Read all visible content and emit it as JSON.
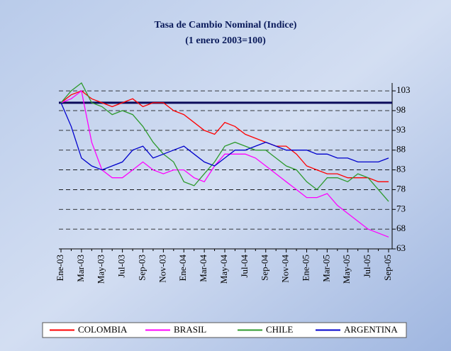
{
  "chart_data": {
    "type": "line",
    "title": "Tasa de Cambio Nominal (Indice)",
    "subtitle": "(1 enero 2003=100)",
    "categories": [
      "Ene-03",
      null,
      "Mar-03",
      null,
      "May-03",
      null,
      "Jul-03",
      null,
      "Sep-03",
      null,
      "Nov-03",
      null,
      "Ene-04",
      null,
      "Mar-04",
      null,
      "May-04",
      null,
      "Jul-04",
      null,
      "Sep-04",
      null,
      "Nov-04",
      null,
      "Ene-05",
      null,
      "Mar-05",
      null,
      "May-05",
      null,
      "Jul-05",
      null,
      "Sep-05"
    ],
    "series": [
      {
        "name": "COLOMBIA",
        "color": "#ff0000",
        "values": [
          100,
          102,
          103,
          101,
          100,
          99,
          100,
          101,
          99,
          100,
          100,
          98,
          97,
          95,
          93,
          92,
          95,
          94,
          92,
          91,
          90,
          89,
          89,
          87,
          84,
          83,
          82,
          82,
          81,
          81,
          81,
          80,
          80
        ]
      },
      {
        "name": "BRASIL",
        "color": "#ff00ff",
        "values": [
          100,
          101,
          103,
          90,
          83,
          81,
          81,
          83,
          85,
          83,
          82,
          83,
          83,
          81,
          80,
          84,
          87,
          87,
          87,
          86,
          84,
          82,
          80,
          78,
          76,
          76,
          77,
          74,
          72,
          70,
          68,
          67,
          66
        ]
      },
      {
        "name": "CHILE",
        "color": "#2e9a2e",
        "values": [
          100,
          103,
          105,
          100,
          99,
          97,
          98,
          97,
          94,
          90,
          87,
          85,
          80,
          79,
          82,
          85,
          89,
          90,
          89,
          88,
          88,
          86,
          84,
          83,
          80,
          78,
          81,
          81,
          80,
          82,
          81,
          78,
          75
        ]
      },
      {
        "name": "ARGENTINA",
        "color": "#0000cc",
        "values": [
          100,
          94,
          86,
          84,
          83,
          84,
          85,
          88,
          89,
          86,
          87,
          88,
          89,
          87,
          85,
          84,
          86,
          88,
          88,
          89,
          90,
          89,
          88,
          88,
          88,
          87,
          87,
          86,
          86,
          85,
          85,
          85,
          86
        ]
      }
    ],
    "reference_line": 100,
    "ylim": [
      63,
      105
    ],
    "yticks": [
      63,
      68,
      73,
      78,
      83,
      88,
      93,
      98,
      103
    ],
    "grid": true
  }
}
